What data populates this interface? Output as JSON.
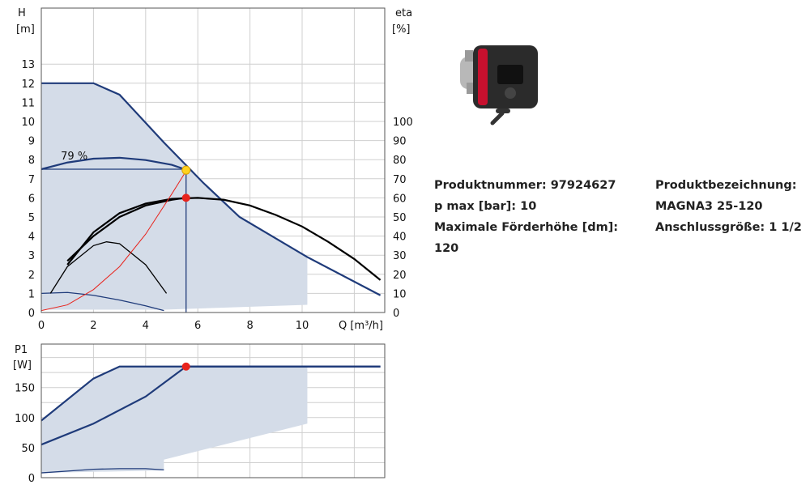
{
  "chart_data": [
    {
      "type": "line",
      "title": "",
      "xlabel": "Q [m³/h]",
      "ylabel": "H\n[m]",
      "y2label": "eta\n[%]",
      "xlim": [
        0,
        13
      ],
      "ylim": [
        0,
        14
      ],
      "y2lim": [
        0,
        140
      ],
      "grid": true,
      "x_ticks": [
        "0",
        "2",
        "4",
        "6",
        "8",
        "10"
      ],
      "y_ticks": [
        "0",
        "1",
        "2",
        "3",
        "4",
        "5",
        "6",
        "7",
        "8",
        "9",
        "10",
        "11",
        "12",
        "13"
      ],
      "y2_ticks": [
        "0",
        "10",
        "20",
        "30",
        "40",
        "50",
        "60",
        "70",
        "80",
        "90",
        "100"
      ],
      "annotations": [
        {
          "text": "79 %",
          "x": 1.3,
          "y": 8.1
        }
      ],
      "operating_area": {
        "x": [
          0,
          2,
          3,
          4.7,
          6.2,
          7.6,
          10.2,
          10.2,
          4.7,
          0
        ],
        "y": [
          12,
          12,
          11.4,
          8.9,
          6.8,
          5.0,
          2.9,
          0.4,
          0.15,
          0.15
        ]
      },
      "series": [
        {
          "role": "max-curve",
          "color": "#1f3b7a",
          "x": [
            0,
            2,
            3,
            4.7,
            6.2,
            7.6,
            10.2,
            13
          ],
          "y": [
            12,
            12,
            11.4,
            8.9,
            6.8,
            5.0,
            2.9,
            0.9
          ]
        },
        {
          "role": "min-curve",
          "color": "#1f3b7a",
          "x": [
            0,
            1,
            2,
            3,
            4,
            4.7
          ],
          "y": [
            1.0,
            1.05,
            0.9,
            0.65,
            0.35,
            0.1
          ]
        },
        {
          "role": "eta-duty",
          "color": "#1f3b7a",
          "axis": "right",
          "x": [
            0,
            1,
            2,
            3,
            4,
            5,
            5.5
          ],
          "y": [
            75,
            78.5,
            80.5,
            81,
            79.8,
            77.3,
            75
          ]
        },
        {
          "role": "eta-black-1",
          "color": "#000000",
          "axis": "right",
          "x": [
            1,
            2,
            3,
            4,
            5,
            6,
            7,
            8,
            9,
            10,
            11,
            12,
            13
          ],
          "y": [
            25,
            42,
            52,
            57,
            59.5,
            60,
            59,
            56,
            51,
            45,
            37,
            28,
            17
          ]
        },
        {
          "role": "eta-black-2",
          "color": "#000000",
          "axis": "right",
          "x": [
            1,
            2,
            3,
            4,
            5,
            5.5
          ],
          "y": [
            27,
            40,
            50,
            56,
            59,
            60
          ]
        },
        {
          "role": "eta-small",
          "color": "#000000",
          "axis": "right",
          "x": [
            0.35,
            1,
            2,
            2.5,
            3,
            4,
            4.8
          ],
          "y": [
            10,
            24,
            35,
            37,
            36,
            25,
            10
          ]
        },
        {
          "role": "system-curve",
          "color": "#e8231c",
          "x": [
            0,
            1,
            2,
            3,
            4,
            5,
            5.55
          ],
          "y": [
            0.1,
            0.4,
            1.2,
            2.4,
            4.1,
            6.2,
            7.4
          ]
        },
        {
          "role": "duty-level",
          "color": "#1f3b7a",
          "x": [
            0,
            5.55
          ],
          "y": [
            7.5,
            7.5
          ]
        }
      ],
      "duty_point": {
        "x": 5.55,
        "y": 7.45
      },
      "eta_point": {
        "x": 5.55,
        "eta": 60
      }
    },
    {
      "type": "line",
      "title": "",
      "ylabel": "P1\n[W]",
      "xlim": [
        0,
        13
      ],
      "ylim": [
        0,
        200
      ],
      "grid": true,
      "y_ticks": [
        "0",
        "50",
        "100",
        "150"
      ],
      "operating_area": {
        "x": [
          0,
          2,
          3,
          10.2,
          10.2,
          4.7,
          4.7,
          0
        ],
        "y": [
          95,
          165,
          185,
          185,
          90,
          30,
          12,
          8
        ]
      },
      "series": [
        {
          "role": "max-power",
          "color": "#1f3b7a",
          "x": [
            0,
            2,
            3,
            13
          ],
          "y": [
            95,
            165,
            185,
            185
          ]
        },
        {
          "role": "duty-power",
          "color": "#1f3b7a",
          "x": [
            0,
            2,
            4,
            5.55,
            13
          ],
          "y": [
            55,
            90,
            135,
            185,
            185
          ]
        },
        {
          "role": "min-power",
          "color": "#1f3b7a",
          "x": [
            0,
            1,
            2,
            3,
            4,
            4.7
          ],
          "y": [
            8,
            11,
            14,
            15,
            15,
            13
          ]
        }
      ],
      "duty_point": {
        "x": 5.55,
        "y": 185
      }
    }
  ],
  "specs": {
    "left": [
      "Produktnummer: 97924627",
      "p max [bar]: 10",
      "Maximale Förderhöhe [dm]: 120"
    ],
    "right": [
      "Produktbezeichnung:",
      "MAGNA3 25-120",
      "Anschlussgröße: 1 1/2"
    ]
  },
  "pump_image": {
    "icon": "circulator-pump-icon",
    "brand_color": "#c8102e"
  }
}
